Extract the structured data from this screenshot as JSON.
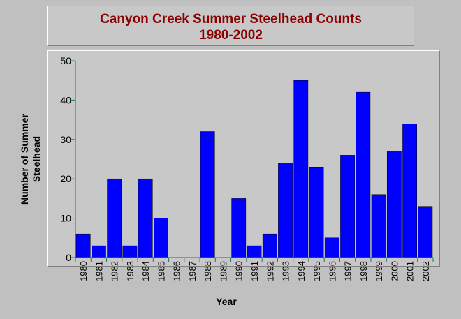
{
  "colors": {
    "bar": "#0000ff",
    "title": "#8b0000",
    "background": "#c0c0c0",
    "axis": "#008080"
  },
  "chart_data": {
    "type": "bar",
    "title": [
      "Canyon Creek Summer Steelhead Counts",
      "1980-2002"
    ],
    "xlabel": "Year",
    "ylabel": [
      "Number of Summer",
      "Steelhead"
    ],
    "ylim": [
      0,
      50
    ],
    "yticks": [
      "0",
      "10",
      "20",
      "30",
      "40",
      "50"
    ],
    "grid": false,
    "categories": [
      "1980",
      "1981",
      "1982",
      "1983",
      "1984",
      "1985",
      "1986",
      "1987",
      "1988",
      "1989",
      "1990",
      "1991",
      "1992",
      "1993",
      "1994",
      "1995",
      "1996",
      "1997",
      "1998",
      "1999",
      "2000",
      "2001",
      "2002"
    ],
    "values": [
      6,
      3,
      20,
      3,
      20,
      10,
      0,
      0,
      32,
      0,
      15,
      3,
      6,
      24,
      45,
      23,
      5,
      26,
      42,
      16,
      27,
      34,
      13
    ]
  }
}
